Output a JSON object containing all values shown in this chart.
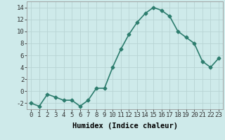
{
  "x": [
    0,
    1,
    2,
    3,
    4,
    5,
    6,
    7,
    8,
    9,
    10,
    11,
    12,
    13,
    14,
    15,
    16,
    17,
    18,
    19,
    20,
    21,
    22,
    23
  ],
  "y": [
    -2,
    -2.5,
    -0.5,
    -1,
    -1.5,
    -1.5,
    -2.5,
    -1.5,
    0.5,
    0.5,
    4,
    7,
    9.5,
    11.5,
    13,
    14,
    13.5,
    12.5,
    10,
    9,
    8,
    5,
    4,
    5.5
  ],
  "line_color": "#2d7d6e",
  "marker": "D",
  "markersize": 2.5,
  "linewidth": 1.2,
  "bg_color": "#ceeaea",
  "grid_color": "#b8d4d4",
  "xlabel": "Humidex (Indice chaleur)",
  "ylim": [
    -3,
    15
  ],
  "xlim": [
    -0.5,
    23.5
  ],
  "yticks": [
    -2,
    0,
    2,
    4,
    6,
    8,
    10,
    12,
    14
  ],
  "xticks": [
    0,
    1,
    2,
    3,
    4,
    5,
    6,
    7,
    8,
    9,
    10,
    11,
    12,
    13,
    14,
    15,
    16,
    17,
    18,
    19,
    20,
    21,
    22,
    23
  ],
  "xlabel_fontsize": 7.5,
  "tick_fontsize": 6.5
}
